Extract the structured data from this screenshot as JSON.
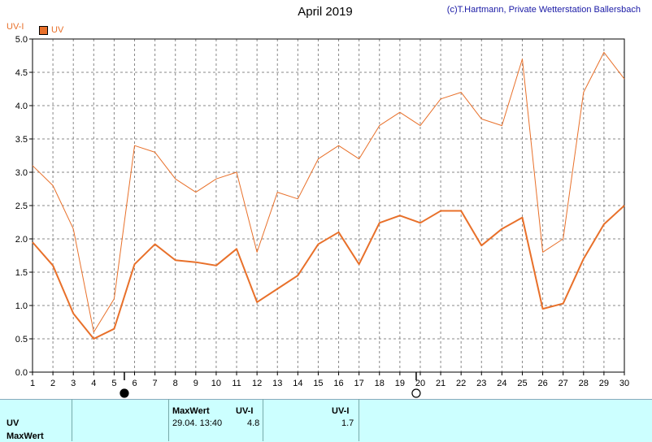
{
  "header": {
    "title": "April 2019",
    "credit": "(c)T.Hartmann, Private Wetterstation Ballersbach",
    "y_unit": "UV-I",
    "legend_label": "UV"
  },
  "colors": {
    "line": "#e8702a",
    "grid": "#888888",
    "panel_bg": "#ccffff"
  },
  "chart_data": {
    "type": "line",
    "x": [
      1,
      2,
      3,
      4,
      5,
      6,
      7,
      8,
      9,
      10,
      11,
      12,
      13,
      14,
      15,
      16,
      17,
      18,
      19,
      20,
      21,
      22,
      23,
      24,
      25,
      26,
      27,
      28,
      29,
      30
    ],
    "series": [
      {
        "values": [
          3.1,
          2.8,
          2.15,
          0.6,
          1.1,
          3.4,
          3.3,
          2.9,
          2.7,
          2.9,
          3.0,
          1.8,
          2.7,
          2.6,
          3.2,
          3.4,
          3.2,
          3.7,
          3.9,
          3.7,
          4.1,
          4.2,
          3.8,
          3.7,
          4.7,
          1.8,
          2.0,
          4.2,
          4.8,
          4.4
        ]
      },
      {
        "values": [
          1.95,
          1.6,
          0.88,
          0.5,
          0.65,
          1.62,
          1.92,
          1.68,
          1.65,
          1.6,
          1.85,
          1.05,
          1.25,
          1.45,
          1.92,
          2.1,
          1.62,
          2.24,
          2.35,
          2.24,
          2.42,
          2.42,
          1.9,
          2.15,
          2.32,
          0.95,
          1.03,
          1.7,
          2.22,
          2.5
        ]
      }
    ],
    "y_ticks": [
      "0.0",
      "0.5",
      "1.0",
      "1.5",
      "2.0",
      "2.5",
      "3.0",
      "3.5",
      "4.0",
      "4.5",
      "5.0"
    ],
    "x_ticks": [
      "1",
      "2",
      "3",
      "4",
      "5",
      "6",
      "7",
      "8",
      "9",
      "10",
      "11",
      "12",
      "13",
      "14",
      "15",
      "16",
      "17",
      "18",
      "19",
      "20",
      "21",
      "22",
      "23",
      "24",
      "25",
      "26",
      "27",
      "28",
      "29",
      "30"
    ],
    "ylim": [
      0,
      5
    ],
    "grid": true,
    "moon_phases": [
      {
        "day": 5.5,
        "phase": "full"
      },
      {
        "day": 19.8,
        "phase": "new"
      }
    ]
  },
  "table": {
    "row_uv": "UV",
    "row_maxwert": "MaxWert",
    "col_maxwert": "MaxWert",
    "col_unit1": "UV-I",
    "col_unit2": "UV-I",
    "max_datetime": "29.04.  13:40",
    "max_value": "4.8",
    "mean_value": "1.7"
  }
}
